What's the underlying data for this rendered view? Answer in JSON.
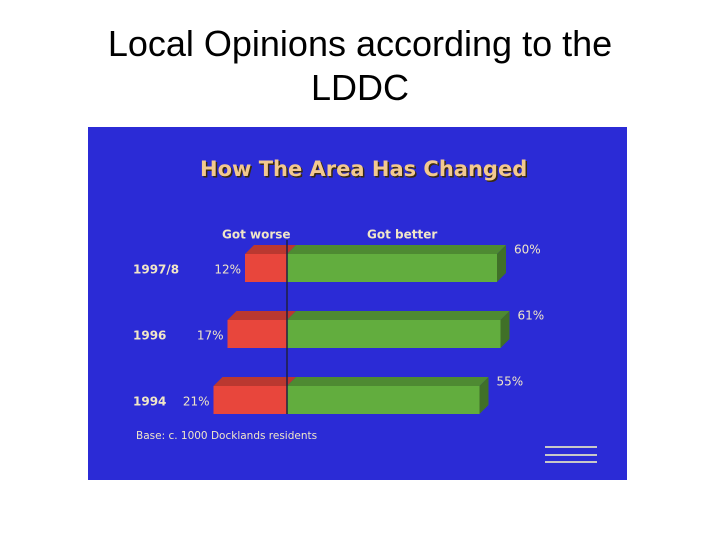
{
  "title": "Local Opinions according to the LDDC",
  "chart_data": {
    "type": "diverging_bar",
    "title": "How The Area Has Changed",
    "categories": [
      "1997/8",
      "1996",
      "1994"
    ],
    "series": [
      {
        "name": "Got worse",
        "color": "#e8463c",
        "values": [
          12,
          17,
          21
        ],
        "value_labels": [
          "12%",
          "17%",
          "21%"
        ]
      },
      {
        "name": "Got better",
        "color": "#62ad3e",
        "values": [
          60,
          61,
          55
        ],
        "value_labels": [
          "60%",
          "61%",
          "55%"
        ]
      }
    ],
    "note": "Base: c. 1000 Docklands residents"
  }
}
